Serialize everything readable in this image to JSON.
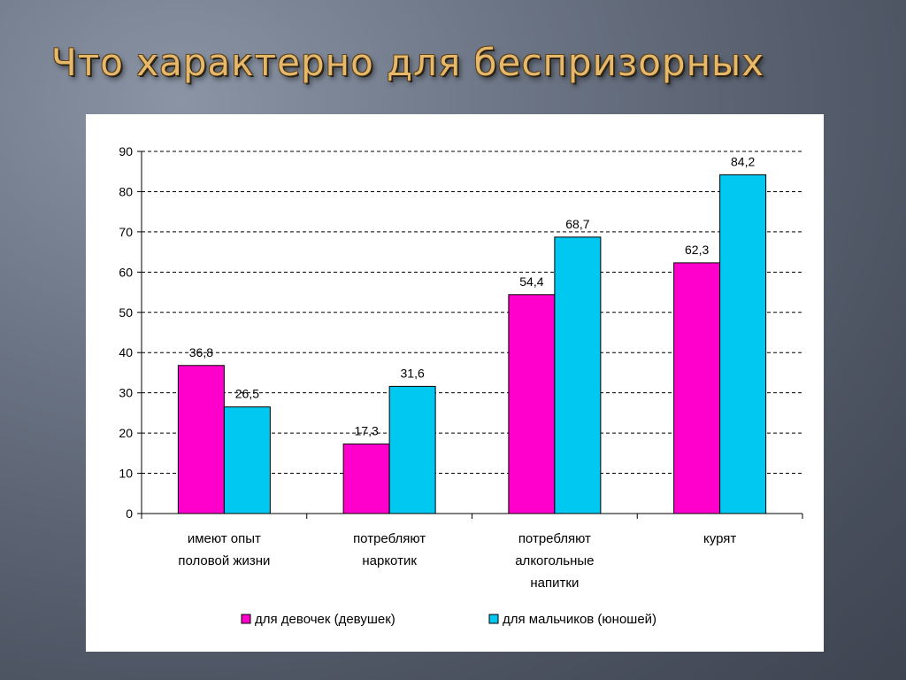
{
  "slide": {
    "title": "Что характерно для беспризорных"
  },
  "colors": {
    "girls": "#ff00cc",
    "boys": "#00c8f0"
  },
  "chart_data": {
    "type": "bar",
    "title": "",
    "xlabel": "",
    "ylabel": "",
    "ylim": [
      0,
      90
    ],
    "yticks": [
      0,
      10,
      20,
      30,
      40,
      50,
      60,
      70,
      80,
      90
    ],
    "grid": true,
    "legend_position": "bottom",
    "categories": [
      [
        "имеют опыт",
        "половой жизни"
      ],
      [
        "потребляют",
        "наркотик"
      ],
      [
        "потребляют",
        "алкогольные",
        "напитки"
      ],
      [
        "курят"
      ]
    ],
    "series": [
      {
        "name": "для девочек (девушек)",
        "values": [
          36.8,
          17.3,
          54.4,
          62.3
        ],
        "labels": [
          "36,8",
          "17,3",
          "54,4",
          "62,3"
        ]
      },
      {
        "name": "для мальчиков (юношей)",
        "values": [
          26.5,
          31.6,
          68.7,
          84.2
        ],
        "labels": [
          "26,5",
          "31,6",
          "68,7",
          "84,2"
        ]
      }
    ]
  }
}
